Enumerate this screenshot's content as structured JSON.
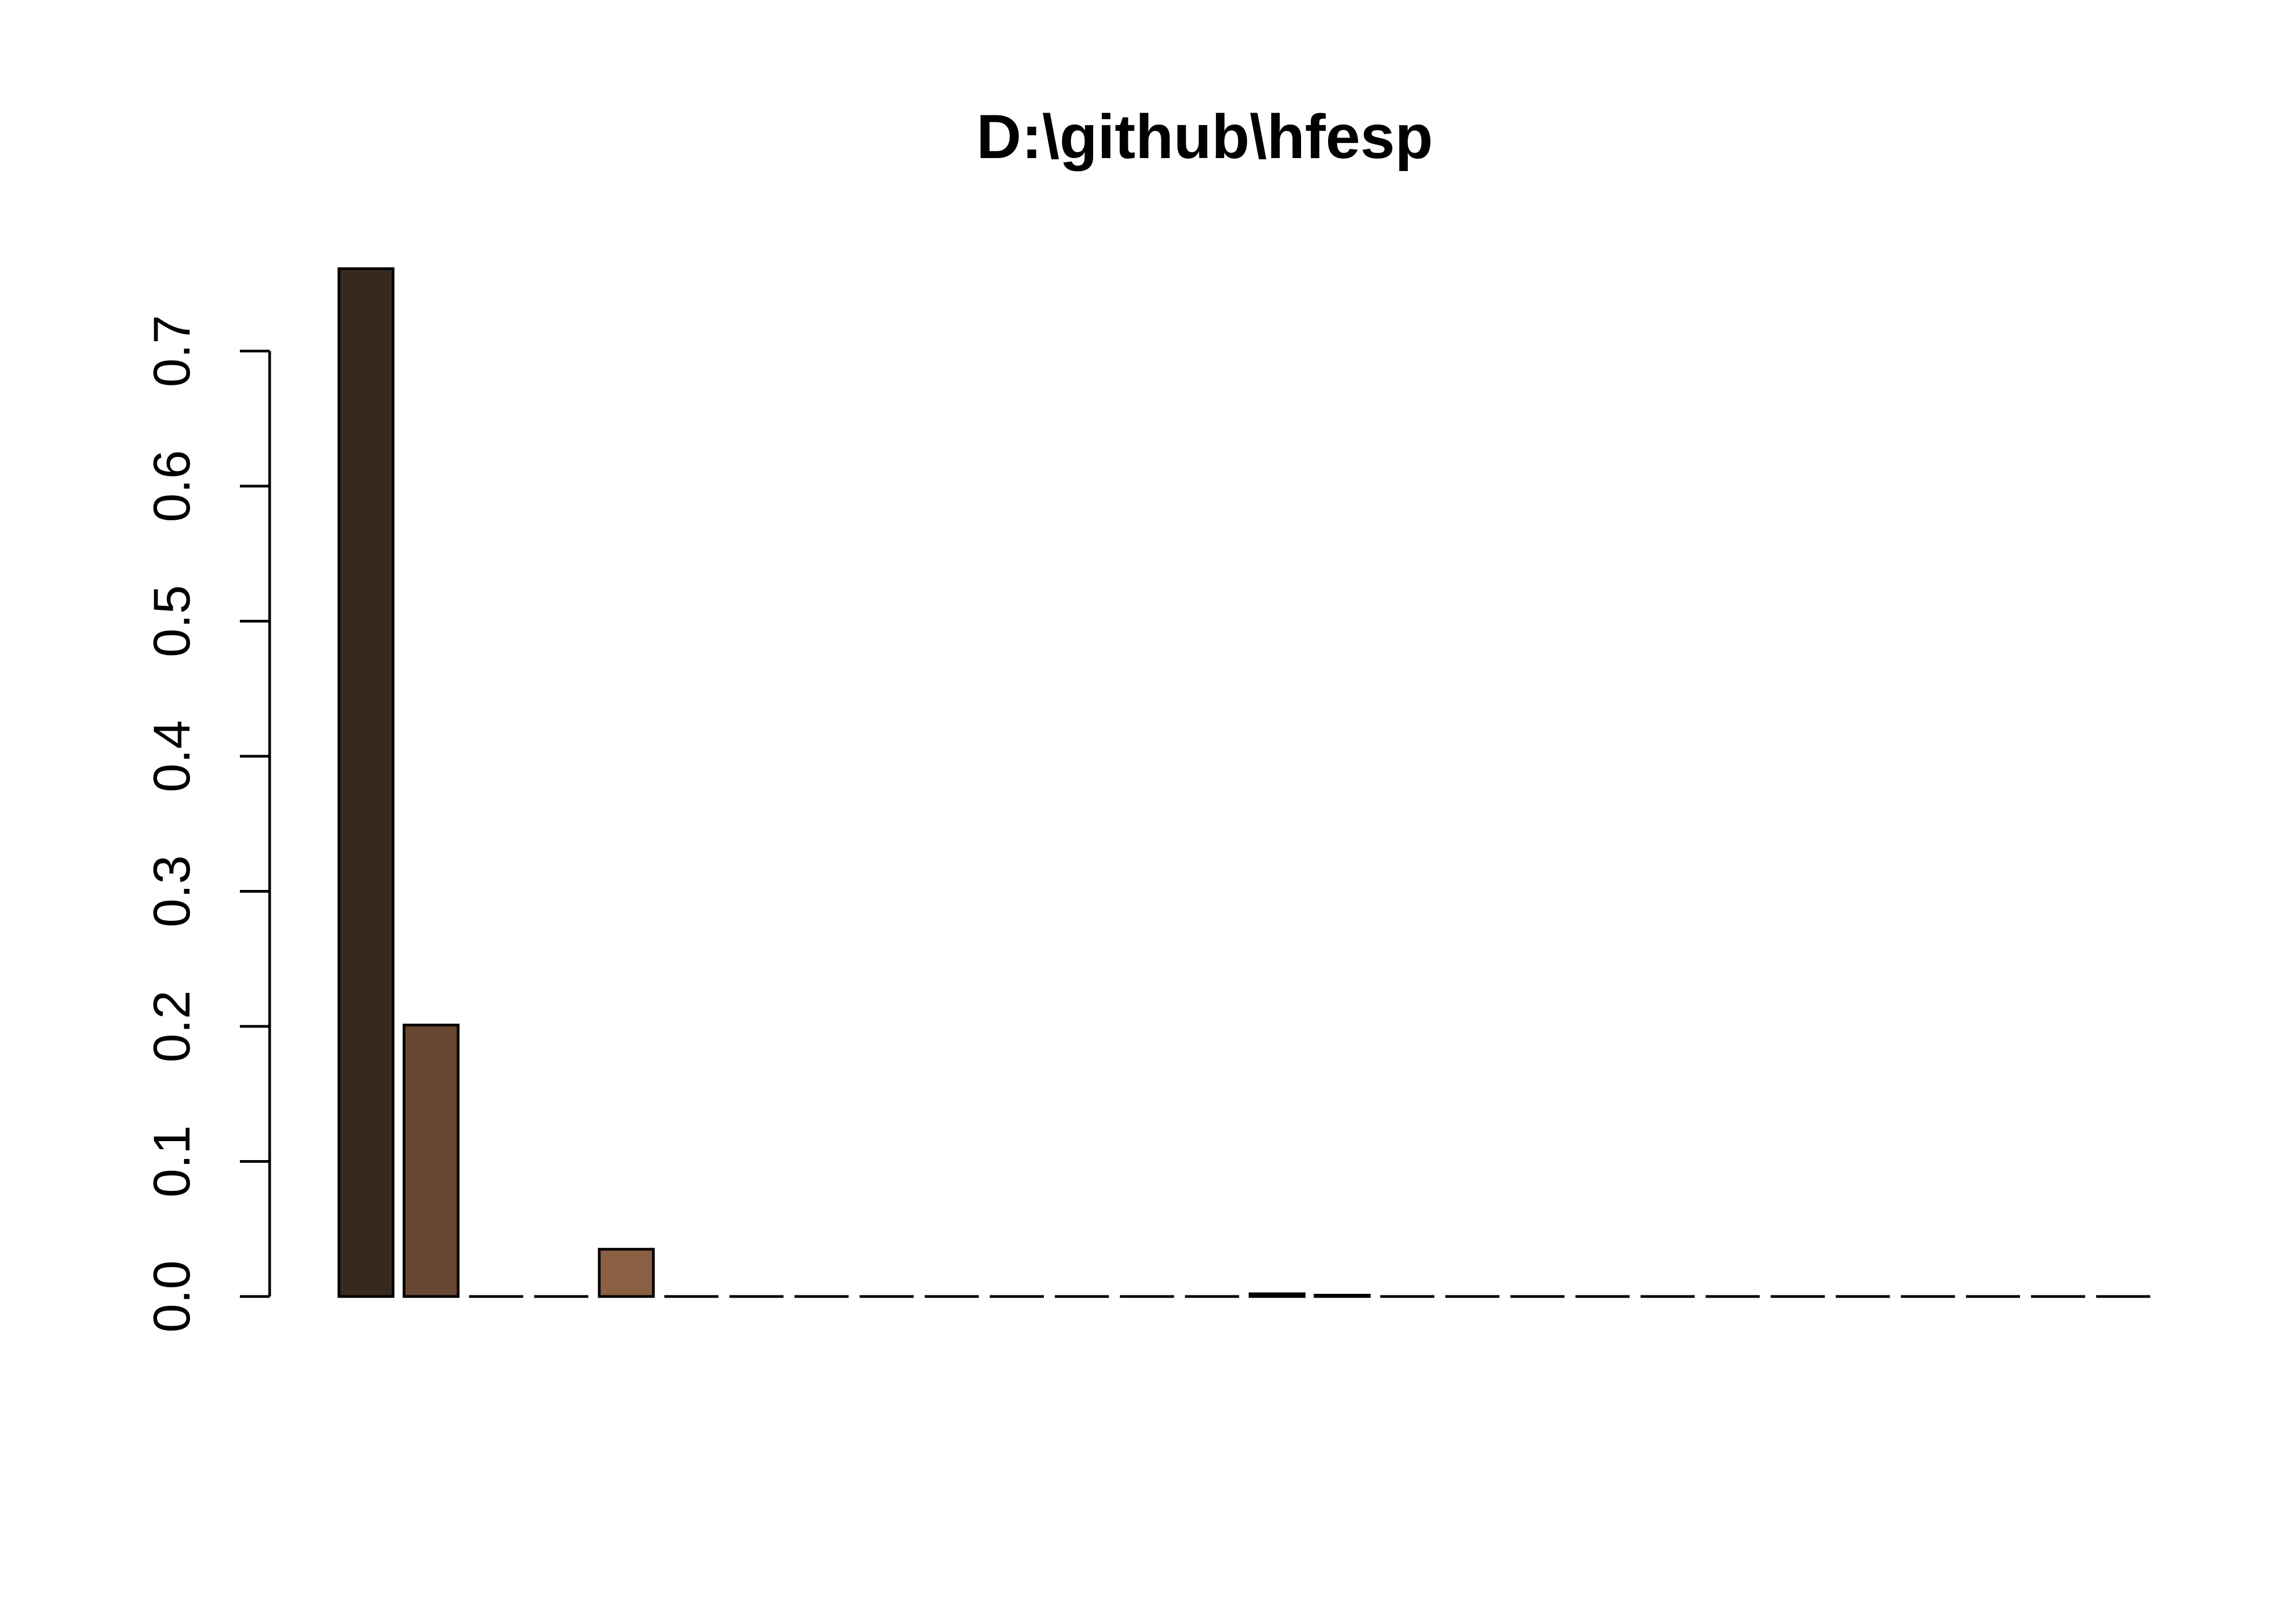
{
  "chart_data": {
    "type": "bar",
    "title": "D:\\github\\hfesp",
    "xlabel": "",
    "ylabel": "",
    "ylim": [
      0,
      0.78
    ],
    "yticks": [
      0.0,
      0.1,
      0.2,
      0.3,
      0.4,
      0.5,
      0.6,
      0.7
    ],
    "ytick_labels": [
      "0.0",
      "0.1",
      "0.2",
      "0.3",
      "0.4",
      "0.5",
      "0.6",
      "0.7"
    ],
    "grid": false,
    "legend": "none",
    "values": [
      0.761,
      0.201,
      0,
      0,
      0.035,
      0,
      0,
      0,
      0,
      0,
      0,
      0,
      0,
      0,
      0.002,
      0.001,
      0,
      0,
      0,
      0,
      0,
      0,
      0,
      0,
      0,
      0,
      0,
      0
    ],
    "colors": [
      "#37291e",
      "#674632",
      "#7a5238",
      "#7d5538",
      "#8b5f42",
      "#8b5f42",
      "#8b5f42",
      "#8b5f42",
      "#8b5f42",
      "#8b5f42",
      "#8b5f42",
      "#8b5f42",
      "#8b5f42",
      "#8b5f42",
      "#3a2a1f",
      "#5b3d2b",
      "#8b5f42",
      "#8b5f42",
      "#8b5f42",
      "#8b5f42",
      "#8b5f42",
      "#8b5f42",
      "#8b5f42",
      "#8b5f42",
      "#8b5f42",
      "#8b5f42",
      "#8b5f42",
      "#8b5f42"
    ]
  }
}
